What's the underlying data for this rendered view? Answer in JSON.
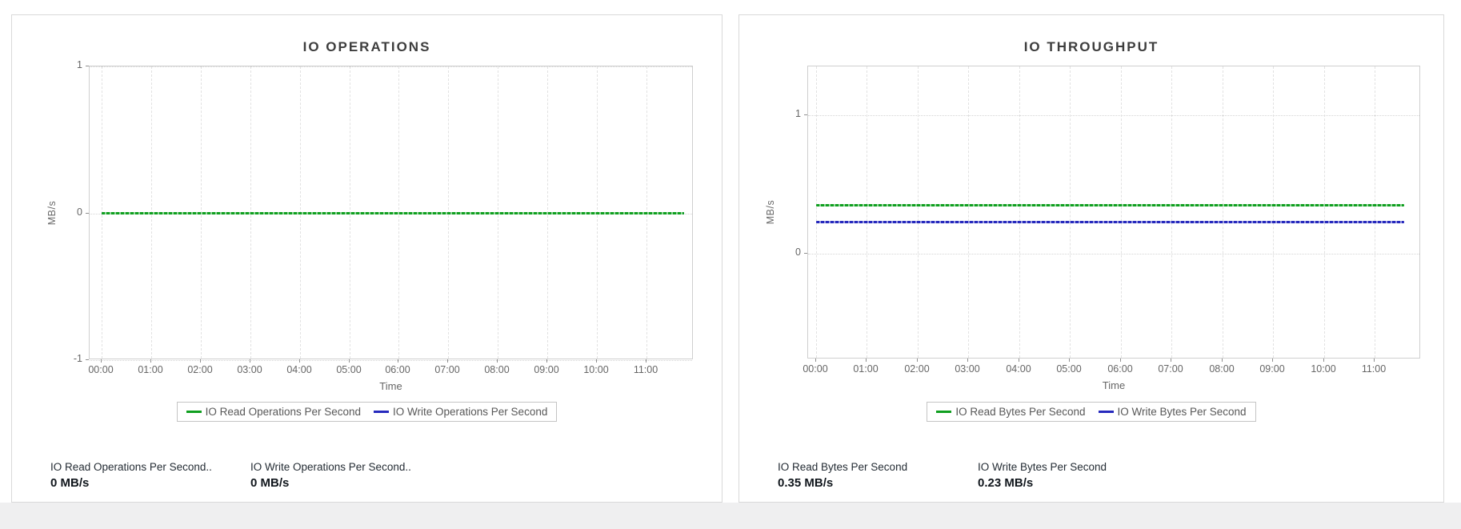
{
  "page": {
    "background": "#ffffff",
    "bottom_strip_color": "#efeff0"
  },
  "chart_data": [
    {
      "type": "line",
      "title": "IO OPERATIONS",
      "xlabel": "Time",
      "ylabel": "MB/s",
      "x_ticks": [
        "00:00",
        "01:00",
        "02:00",
        "03:00",
        "04:00",
        "05:00",
        "06:00",
        "07:00",
        "08:00",
        "09:00",
        "10:00",
        "11:00"
      ],
      "y_ticks": [
        1,
        0,
        -1
      ],
      "ylim": [
        -1,
        1
      ],
      "grid": true,
      "legend_position": "bottom",
      "series": [
        {
          "name": "IO Read Operations Per Second",
          "color": "#0f9f1f",
          "values_constant": 0,
          "x_start": "00:00",
          "x_end_approx": "11:35"
        },
        {
          "name": "IO Write Operations Per Second",
          "color": "#2629bd",
          "values_constant": 0,
          "x_start": "00:00",
          "x_end_approx": "11:35"
        }
      ]
    },
    {
      "type": "line",
      "title": "IO THROUGHPUT",
      "xlabel": "Time",
      "ylabel": "MB/s",
      "x_ticks": [
        "00:00",
        "01:00",
        "02:00",
        "03:00",
        "04:00",
        "05:00",
        "06:00",
        "07:00",
        "08:00",
        "09:00",
        "10:00",
        "11:00"
      ],
      "y_ticks": [
        1,
        0
      ],
      "ylim": [
        -0.75,
        1.35
      ],
      "grid": true,
      "legend_position": "bottom",
      "series": [
        {
          "name": "IO Read Bytes Per Second",
          "color": "#0f9f1f",
          "values_constant": 0.35,
          "x_start": "00:00",
          "x_end_approx": "11:35"
        },
        {
          "name": "IO Write Bytes Per Second",
          "color": "#2629bd",
          "values_constant": 0.23,
          "x_start": "00:00",
          "x_end_approx": "11:35"
        }
      ]
    }
  ],
  "stat_panels": [
    [
      {
        "label": "IO Read Operations Per Second..",
        "value": "0 MB/s"
      },
      {
        "label": "IO Write Operations Per Second..",
        "value": "0 MB/s"
      }
    ],
    [
      {
        "label": "IO Read Bytes Per Second",
        "value": "0.35 MB/s"
      },
      {
        "label": "IO Write Bytes Per Second",
        "value": "0.23 MB/s"
      }
    ]
  ]
}
